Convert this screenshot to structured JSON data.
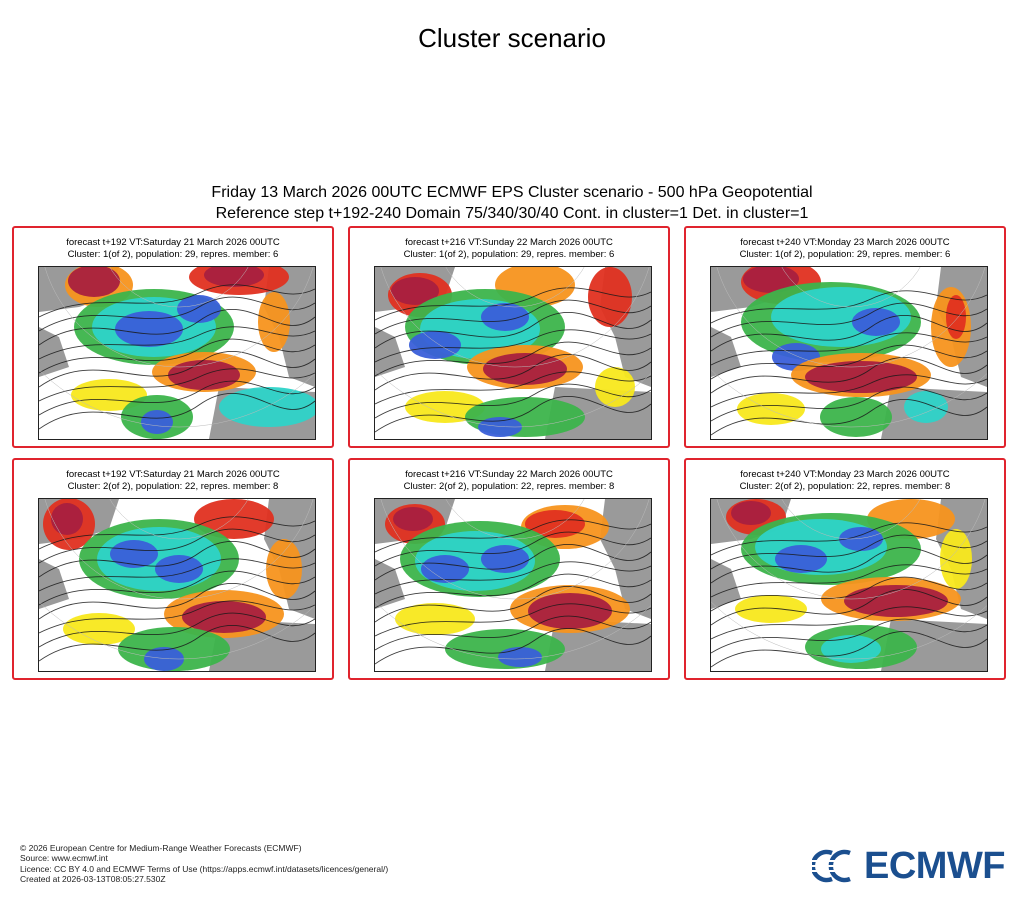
{
  "page_title": "Cluster scenario",
  "figure": {
    "title_line1": "Friday 13 March 2026 00UTC ECMWF EPS Cluster scenario - 500 hPa Geopotential",
    "title_line2": "Reference step t+192-240 Domain 75/340/30/40 Cont. in cluster=1 Det. in cluster=1"
  },
  "panels": [
    {
      "forecast": "forecast t+192 VT:Saturday 21 March 2026 00UTC",
      "cluster": "Cluster: 1(of 2), population: 29, repres. member: 6"
    },
    {
      "forecast": "forecast t+216 VT:Sunday 22 March 2026 00UTC",
      "cluster": "Cluster: 1(of 2), population: 29, repres. member: 6"
    },
    {
      "forecast": "forecast t+240 VT:Monday 23 March 2026 00UTC",
      "cluster": "Cluster: 1(of 2), population: 29, repres. member: 6"
    },
    {
      "forecast": "forecast t+192 VT:Saturday 21 March 2026 00UTC",
      "cluster": "Cluster: 2(of 2), population: 22, repres. member: 8"
    },
    {
      "forecast": "forecast t+216 VT:Sunday 22 March 2026 00UTC",
      "cluster": "Cluster: 2(of 2), population: 22, repres. member: 8"
    },
    {
      "forecast": "forecast t+240 VT:Monday 23 March 2026 00UTC",
      "cluster": "Cluster: 2(of 2), population: 22, repres. member: 8"
    }
  ],
  "colors": {
    "panel_border": "#e0242e",
    "anomaly_strong_positive": "#a8203f",
    "anomaly_positive": "#e03020",
    "anomaly_weak_positive": "#f7941d",
    "anomaly_slight_positive": "#f8e81c",
    "anomaly_slight_negative": "#3cb44b",
    "anomaly_negative": "#2ed3c8",
    "anomaly_strong_negative": "#3a5fd9",
    "anomaly_extreme_negative": "#1e20b8",
    "land": "#9a9a9a",
    "logo": "#1b4f8f"
  },
  "footer": {
    "copyright": "© 2026 European Centre for Medium-Range Weather Forecasts (ECMWF)",
    "source": "Source: www.ecmwf.int",
    "licence": "Licence: CC BY 4.0 and ECMWF Terms of Use (https://apps.ecmwf.int/datasets/licences/general/)",
    "created": "Created at 2026-03-13T08:05:27.530Z"
  },
  "logo": {
    "text": "ECMWF",
    "icon": "ecmwf-logo-icon"
  }
}
